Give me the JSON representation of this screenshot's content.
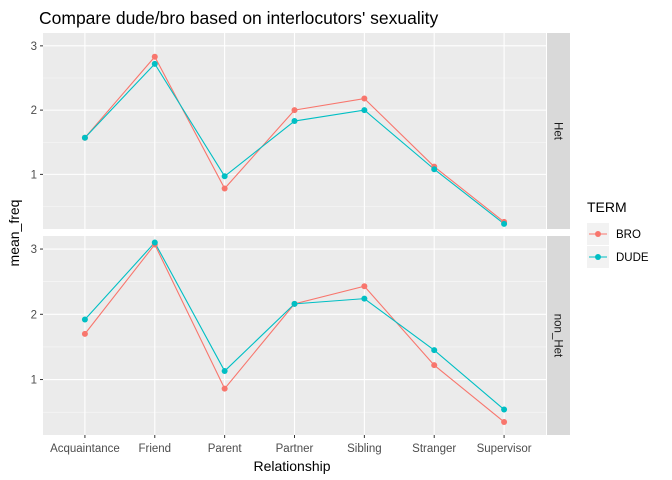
{
  "chart_data": {
    "type": "line",
    "title": "Compare dude/bro based on interlocutors' sexuality",
    "xlabel": "Relationship",
    "ylabel": "mean_freq",
    "categories": [
      "Acquaintance",
      "Friend",
      "Parent",
      "Partner",
      "Sibling",
      "Stranger",
      "Supervisor"
    ],
    "legend": {
      "title": "TERM",
      "position": "right",
      "entries": [
        {
          "name": "BRO",
          "color": "#F8766D"
        },
        {
          "name": "DUDE",
          "color": "#00BFC4"
        }
      ]
    },
    "facets": [
      {
        "strip_label": "Het",
        "y_ticks": [
          1,
          2,
          3
        ],
        "y_tick_labels": [
          "1",
          "2",
          "3"
        ],
        "ylim": [
          0.15,
          3.2
        ],
        "series": [
          {
            "name": "BRO",
            "values": [
              1.57,
              2.83,
              0.78,
              2.0,
              2.18,
              1.12,
              0.26
            ]
          },
          {
            "name": "DUDE",
            "values": [
              1.57,
              2.72,
              0.97,
              1.83,
              2.0,
              1.08,
              0.23
            ]
          }
        ]
      },
      {
        "strip_label": "non_Het",
        "y_ticks": [
          1,
          2,
          3
        ],
        "y_tick_labels": [
          "1",
          "2",
          "3"
        ],
        "ylim": [
          0.15,
          3.2
        ],
        "series": [
          {
            "name": "BRO",
            "values": [
              1.7,
              3.07,
              0.86,
              2.16,
              2.43,
              1.22,
              0.35
            ]
          },
          {
            "name": "DUDE",
            "values": [
              1.92,
              3.1,
              1.13,
              2.16,
              2.24,
              1.45,
              0.54
            ]
          }
        ]
      }
    ],
    "grid": true,
    "colors": {
      "panel_bg": "#EBEBEB",
      "grid_major": "#FFFFFF",
      "strip_bg": "#D9D9D9",
      "legend_key_bg": "#F2F2F2",
      "axis_text": "#4D4D4D",
      "text": "#000000"
    }
  }
}
